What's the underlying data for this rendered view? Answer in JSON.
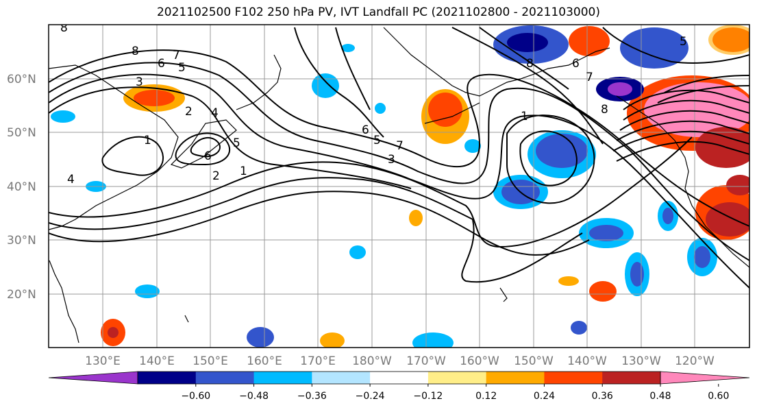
{
  "title": "2021102500 F102 250 hPa PV, IVT Landfall PC (2021102800 - 2021103000)",
  "lat_labels": [
    "60°N",
    "50°N",
    "40°N",
    "30°N",
    "20°N"
  ],
  "lon_labels": [
    "130°E",
    "140°E",
    "150°E",
    "160°E",
    "170°E",
    "180°W",
    "170°W",
    "160°W",
    "150°W",
    "140°W",
    "130°W",
    "120°W"
  ],
  "colorbar": {
    "colors": [
      "#9a35cc",
      "#000088",
      "#3355cc",
      "#00bbff",
      "#b3e5ff",
      "#ffffff",
      "#ffee88",
      "#ffaa00",
      "#ff4400",
      "#bb2222",
      "#ff88bb"
    ],
    "tick_labels": [
      "−0.60",
      "−0.48",
      "−0.36",
      "−0.24",
      "−0.12",
      "0.12",
      "0.24",
      "0.36",
      "0.48",
      "0.60"
    ]
  },
  "contour_labels": [
    "8",
    "8",
    "7",
    "6",
    "5",
    "3",
    "2",
    "4",
    "1",
    "5",
    "6",
    "1",
    "2",
    "4",
    "6",
    "5",
    "7",
    "3",
    "1",
    "8",
    "6",
    "7",
    "8",
    "5"
  ],
  "icons": [
    "map-panel"
  ]
}
